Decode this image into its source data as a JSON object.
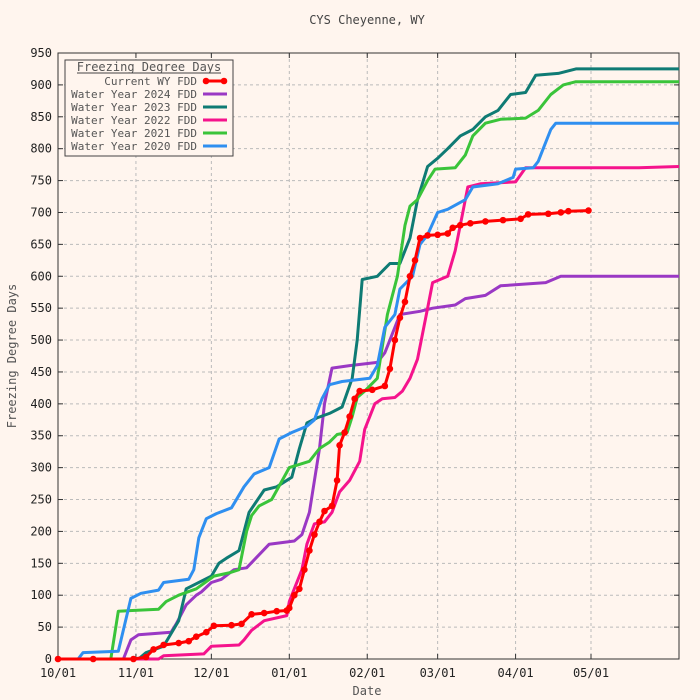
{
  "chart_data": {
    "type": "line",
    "title": "CYS Cheyenne, WY",
    "xlabel": "Date",
    "ylabel": "Freezing Degree Days",
    "legend_title": "Freezing Degree Days",
    "legend_position": "top-left",
    "grid": true,
    "xlim": [
      "2024-10-01",
      "2025-06-05"
    ],
    "ylim": [
      0,
      950
    ],
    "x_ticks": [
      {
        "date": "2024-10-01",
        "label": "10/01"
      },
      {
        "date": "2024-11-01",
        "label": "11/01"
      },
      {
        "date": "2024-12-01",
        "label": "12/01"
      },
      {
        "date": "2025-01-01",
        "label": "01/01"
      },
      {
        "date": "2025-02-01",
        "label": "02/01"
      },
      {
        "date": "2025-03-01",
        "label": "03/01"
      },
      {
        "date": "2025-04-01",
        "label": "04/01"
      },
      {
        "date": "2025-05-01",
        "label": "05/01"
      }
    ],
    "y_ticks": [
      0,
      50,
      100,
      150,
      200,
      250,
      300,
      350,
      400,
      450,
      500,
      550,
      600,
      650,
      700,
      750,
      800,
      850,
      900,
      950
    ],
    "series": [
      {
        "name": "Current WY FDD",
        "color": "#ff0000",
        "markers": true,
        "points": [
          [
            "2024-10-01",
            0
          ],
          [
            "2024-10-15",
            0
          ],
          [
            "2024-10-31",
            0
          ],
          [
            "2024-11-05",
            3
          ],
          [
            "2024-11-08",
            15
          ],
          [
            "2024-11-12",
            22
          ],
          [
            "2024-11-18",
            25
          ],
          [
            "2024-11-22",
            28
          ],
          [
            "2024-11-25",
            35
          ],
          [
            "2024-11-29",
            42
          ],
          [
            "2024-12-02",
            52
          ],
          [
            "2024-12-09",
            53
          ],
          [
            "2024-12-13",
            55
          ],
          [
            "2024-12-17",
            70
          ],
          [
            "2024-12-22",
            72
          ],
          [
            "2024-12-27",
            75
          ],
          [
            "2024-12-31",
            76
          ],
          [
            "2025-01-01",
            80
          ],
          [
            "2025-01-03",
            100
          ],
          [
            "2025-01-05",
            110
          ],
          [
            "2025-01-07",
            140
          ],
          [
            "2025-01-09",
            170
          ],
          [
            "2025-01-11",
            195
          ],
          [
            "2025-01-13",
            215
          ],
          [
            "2025-01-15",
            232
          ],
          [
            "2025-01-18",
            240
          ],
          [
            "2025-01-20",
            280
          ],
          [
            "2025-01-21",
            335
          ],
          [
            "2025-01-23",
            355
          ],
          [
            "2025-01-25",
            380
          ],
          [
            "2025-01-27",
            408
          ],
          [
            "2025-01-29",
            420
          ],
          [
            "2025-02-03",
            422
          ],
          [
            "2025-02-08",
            428
          ],
          [
            "2025-02-10",
            455
          ],
          [
            "2025-02-12",
            500
          ],
          [
            "2025-02-14",
            535
          ],
          [
            "2025-02-16",
            560
          ],
          [
            "2025-02-18",
            600
          ],
          [
            "2025-02-20",
            625
          ],
          [
            "2025-02-22",
            660
          ],
          [
            "2025-02-25",
            664
          ],
          [
            "2025-03-01",
            665
          ],
          [
            "2025-03-05",
            667
          ],
          [
            "2025-03-07",
            676
          ],
          [
            "2025-03-10",
            680
          ],
          [
            "2025-03-14",
            683
          ],
          [
            "2025-03-20",
            686
          ],
          [
            "2025-03-27",
            688
          ],
          [
            "2025-04-03",
            690
          ],
          [
            "2025-04-06",
            697
          ],
          [
            "2025-04-14",
            698
          ],
          [
            "2025-04-19",
            700
          ],
          [
            "2025-04-22",
            702
          ],
          [
            "2025-04-30",
            703
          ]
        ]
      },
      {
        "name": "Water Year 2024 FDD",
        "color": "#9a38c4",
        "markers": false,
        "points": [
          [
            "2024-10-01",
            0
          ],
          [
            "2024-10-27",
            0
          ],
          [
            "2024-10-30",
            30
          ],
          [
            "2024-11-02",
            38
          ],
          [
            "2024-11-15",
            42
          ],
          [
            "2024-11-17",
            55
          ],
          [
            "2024-11-21",
            85
          ],
          [
            "2024-11-25",
            100
          ],
          [
            "2024-11-27",
            105
          ],
          [
            "2024-12-01",
            120
          ],
          [
            "2024-12-05",
            125
          ],
          [
            "2024-12-10",
            140
          ],
          [
            "2024-12-15",
            143
          ],
          [
            "2024-12-24",
            180
          ],
          [
            "2025-01-03",
            185
          ],
          [
            "2025-01-06",
            195
          ],
          [
            "2025-01-09",
            230
          ],
          [
            "2025-01-13",
            330
          ],
          [
            "2025-01-15",
            400
          ],
          [
            "2025-01-18",
            456
          ],
          [
            "2025-01-25",
            460
          ],
          [
            "2025-02-05",
            465
          ],
          [
            "2025-02-08",
            480
          ],
          [
            "2025-02-10",
            500
          ],
          [
            "2025-02-14",
            540
          ],
          [
            "2025-02-22",
            545
          ],
          [
            "2025-02-27",
            550
          ],
          [
            "2025-03-08",
            555
          ],
          [
            "2025-03-12",
            565
          ],
          [
            "2025-03-20",
            570
          ],
          [
            "2025-03-26",
            585
          ],
          [
            "2025-04-13",
            590
          ],
          [
            "2025-04-19",
            600
          ],
          [
            "2025-06-05",
            600
          ]
        ]
      },
      {
        "name": "Water Year 2023 FDD",
        "color": "#0f7b74",
        "markers": false,
        "points": [
          [
            "2024-10-01",
            0
          ],
          [
            "2024-11-02",
            0
          ],
          [
            "2024-11-05",
            10
          ],
          [
            "2024-11-12",
            20
          ],
          [
            "2024-11-18",
            60
          ],
          [
            "2024-11-21",
            110
          ],
          [
            "2024-12-01",
            130
          ],
          [
            "2024-12-04",
            150
          ],
          [
            "2024-12-07",
            158
          ],
          [
            "2024-12-12",
            170
          ],
          [
            "2024-12-16",
            230
          ],
          [
            "2024-12-22",
            265
          ],
          [
            "2024-12-27",
            270
          ],
          [
            "2025-01-02",
            285
          ],
          [
            "2025-01-05",
            330
          ],
          [
            "2025-01-08",
            370
          ],
          [
            "2025-01-12",
            378
          ],
          [
            "2025-01-17",
            385
          ],
          [
            "2025-01-22",
            395
          ],
          [
            "2025-01-26",
            440
          ],
          [
            "2025-01-28",
            500
          ],
          [
            "2025-01-30",
            595
          ],
          [
            "2025-02-05",
            600
          ],
          [
            "2025-02-10",
            620
          ],
          [
            "2025-02-14",
            620
          ],
          [
            "2025-02-18",
            660
          ],
          [
            "2025-02-21",
            720
          ],
          [
            "2025-02-25",
            772
          ],
          [
            "2025-03-01",
            785
          ],
          [
            "2025-03-05",
            800
          ],
          [
            "2025-03-10",
            820
          ],
          [
            "2025-03-15",
            830
          ],
          [
            "2025-03-20",
            850
          ],
          [
            "2025-03-25",
            860
          ],
          [
            "2025-03-30",
            885
          ],
          [
            "2025-04-05",
            888
          ],
          [
            "2025-04-09",
            915
          ],
          [
            "2025-04-18",
            918
          ],
          [
            "2025-04-25",
            925
          ],
          [
            "2025-06-05",
            925
          ]
        ]
      },
      {
        "name": "Water Year 2022 FDD",
        "color": "#f5138c",
        "markers": false,
        "points": [
          [
            "2024-10-01",
            0
          ],
          [
            "2024-11-10",
            0
          ],
          [
            "2024-11-12",
            5
          ],
          [
            "2024-11-28",
            8
          ],
          [
            "2024-12-01",
            20
          ],
          [
            "2024-12-12",
            22
          ],
          [
            "2024-12-14",
            30
          ],
          [
            "2024-12-17",
            45
          ],
          [
            "2024-12-22",
            60
          ],
          [
            "2024-12-31",
            68
          ],
          [
            "2025-01-01",
            90
          ],
          [
            "2025-01-03",
            110
          ],
          [
            "2025-01-06",
            140
          ],
          [
            "2025-01-08",
            180
          ],
          [
            "2025-01-11",
            212
          ],
          [
            "2025-01-15",
            215
          ],
          [
            "2025-01-18",
            230
          ],
          [
            "2025-01-21",
            262
          ],
          [
            "2025-01-25",
            280
          ],
          [
            "2025-01-29",
            310
          ],
          [
            "2025-01-31",
            360
          ],
          [
            "2025-02-04",
            400
          ],
          [
            "2025-02-07",
            408
          ],
          [
            "2025-02-12",
            410
          ],
          [
            "2025-02-15",
            420
          ],
          [
            "2025-02-18",
            440
          ],
          [
            "2025-02-21",
            470
          ],
          [
            "2025-02-25",
            550
          ],
          [
            "2025-02-27",
            590
          ],
          [
            "2025-03-05",
            600
          ],
          [
            "2025-03-08",
            640
          ],
          [
            "2025-03-11",
            700
          ],
          [
            "2025-03-13",
            740
          ],
          [
            "2025-03-18",
            745
          ],
          [
            "2025-04-01",
            748
          ],
          [
            "2025-04-05",
            770
          ],
          [
            "2025-05-20",
            770
          ],
          [
            "2025-06-05",
            772
          ]
        ]
      },
      {
        "name": "Water Year 2021 FDD",
        "color": "#3ac43a",
        "markers": false,
        "points": [
          [
            "2024-10-01",
            0
          ],
          [
            "2024-10-22",
            0
          ],
          [
            "2024-10-25",
            75
          ],
          [
            "2024-11-10",
            78
          ],
          [
            "2024-11-13",
            90
          ],
          [
            "2024-11-18",
            100
          ],
          [
            "2024-11-25",
            110
          ],
          [
            "2024-12-02",
            130
          ],
          [
            "2024-12-08",
            135
          ],
          [
            "2024-12-12",
            140
          ],
          [
            "2024-12-15",
            200
          ],
          [
            "2024-12-17",
            225
          ],
          [
            "2024-12-20",
            240
          ],
          [
            "2024-12-25",
            250
          ],
          [
            "2025-01-01",
            300
          ],
          [
            "2025-01-05",
            305
          ],
          [
            "2025-01-09",
            310
          ],
          [
            "2025-01-13",
            330
          ],
          [
            "2025-01-17",
            340
          ],
          [
            "2025-01-20",
            352
          ],
          [
            "2025-01-24",
            355
          ],
          [
            "2025-01-26",
            380
          ],
          [
            "2025-01-28",
            410
          ],
          [
            "2025-01-31",
            420
          ],
          [
            "2025-02-05",
            440
          ],
          [
            "2025-02-09",
            540
          ],
          [
            "2025-02-13",
            600
          ],
          [
            "2025-02-16",
            680
          ],
          [
            "2025-02-18",
            710
          ],
          [
            "2025-02-21",
            720
          ],
          [
            "2025-02-25",
            750
          ],
          [
            "2025-02-28",
            768
          ],
          [
            "2025-03-08",
            770
          ],
          [
            "2025-03-12",
            790
          ],
          [
            "2025-03-15",
            820
          ],
          [
            "2025-03-20",
            840
          ],
          [
            "2025-03-26",
            846
          ],
          [
            "2025-04-05",
            848
          ],
          [
            "2025-04-10",
            860
          ],
          [
            "2025-04-15",
            885
          ],
          [
            "2025-04-20",
            900
          ],
          [
            "2025-04-25",
            905
          ],
          [
            "2025-06-05",
            905
          ]
        ]
      },
      {
        "name": "Water Year 2020 FDD",
        "color": "#2f8ff0",
        "markers": false,
        "points": [
          [
            "2024-10-01",
            0
          ],
          [
            "2024-10-09",
            0
          ],
          [
            "2024-10-11",
            10
          ],
          [
            "2024-10-25",
            12
          ],
          [
            "2024-10-30",
            95
          ],
          [
            "2024-11-03",
            103
          ],
          [
            "2024-11-10",
            108
          ],
          [
            "2024-11-12",
            120
          ],
          [
            "2024-11-22",
            125
          ],
          [
            "2024-11-24",
            140
          ],
          [
            "2024-11-26",
            190
          ],
          [
            "2024-11-29",
            220
          ],
          [
            "2024-12-03",
            228
          ],
          [
            "2024-12-09",
            237
          ],
          [
            "2024-12-14",
            270
          ],
          [
            "2024-12-18",
            290
          ],
          [
            "2024-12-24",
            300
          ],
          [
            "2024-12-28",
            345
          ],
          [
            "2025-01-02",
            355
          ],
          [
            "2025-01-08",
            365
          ],
          [
            "2025-01-11",
            375
          ],
          [
            "2025-01-14",
            408
          ],
          [
            "2025-01-17",
            430
          ],
          [
            "2025-01-22",
            435
          ],
          [
            "2025-02-02",
            440
          ],
          [
            "2025-02-05",
            460
          ],
          [
            "2025-02-08",
            520
          ],
          [
            "2025-02-12",
            540
          ],
          [
            "2025-02-14",
            580
          ],
          [
            "2025-02-19",
            600
          ],
          [
            "2025-02-22",
            650
          ],
          [
            "2025-02-25",
            665
          ],
          [
            "2025-03-01",
            700
          ],
          [
            "2025-03-05",
            705
          ],
          [
            "2025-03-12",
            720
          ],
          [
            "2025-03-15",
            740
          ],
          [
            "2025-03-25",
            745
          ],
          [
            "2025-03-31",
            755
          ],
          [
            "2025-04-01",
            768
          ],
          [
            "2025-04-08",
            770
          ],
          [
            "2025-04-10",
            780
          ],
          [
            "2025-04-12",
            800
          ],
          [
            "2025-04-15",
            830
          ],
          [
            "2025-04-17",
            840
          ],
          [
            "2025-06-05",
            840
          ]
        ]
      }
    ]
  }
}
